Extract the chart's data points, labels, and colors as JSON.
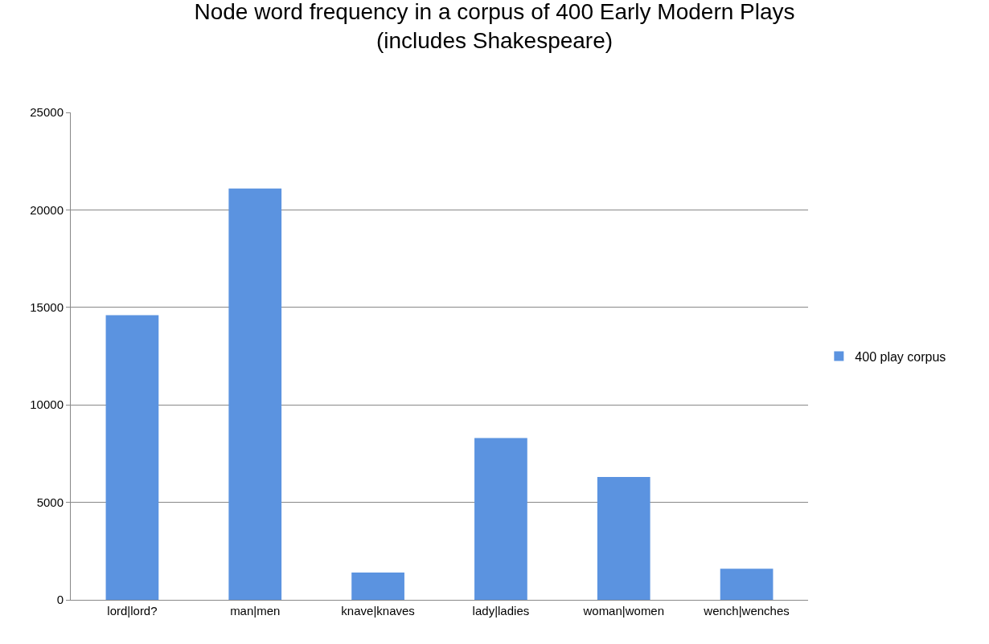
{
  "chart_data": {
    "type": "bar",
    "title": "Node word frequency in a corpus of 400 Early Modern Plays\n(includes Shakespeare)",
    "categories": [
      "lord|lord?",
      "man|men",
      "knave|knaves",
      "lady|ladies",
      "woman|women",
      "wench|wenches"
    ],
    "series": [
      {
        "name": "400 play corpus",
        "color": "#5b93e0",
        "values": [
          14600,
          21100,
          1400,
          8300,
          6300,
          1600
        ]
      }
    ],
    "ylim": [
      0,
      25000
    ],
    "yticks": [
      0,
      5000,
      10000,
      15000,
      20000,
      25000
    ],
    "grid": "y",
    "legend": "right"
  }
}
